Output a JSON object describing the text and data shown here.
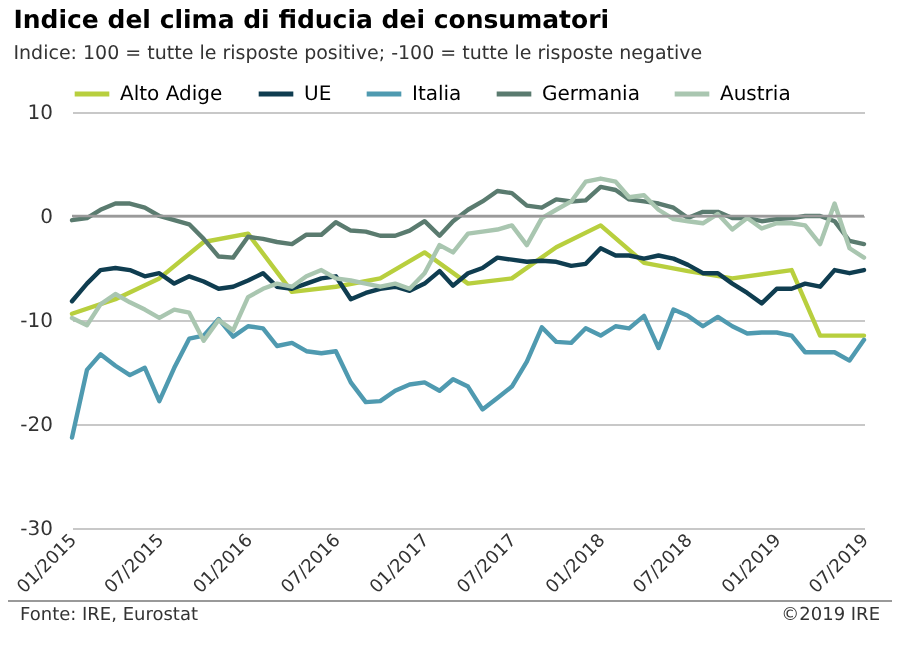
{
  "chart_data": {
    "type": "line",
    "title": "Indice del clima di fiducia dei consumatori",
    "subtitle": "Indice: 100 = tutte le risposte positive; -100 =  tutte le risposte negative",
    "annotations": [
      "Fonte: IRE, Eurostat",
      "©2019 IRE"
    ],
    "x": [
      "2015-01",
      "2015-02",
      "2015-03",
      "2015-04",
      "2015-05",
      "2015-06",
      "2015-07",
      "2015-08",
      "2015-09",
      "2015-10",
      "2015-11",
      "2015-12",
      "2016-01",
      "2016-02",
      "2016-03",
      "2016-04",
      "2016-05",
      "2016-06",
      "2016-07",
      "2016-08",
      "2016-09",
      "2016-10",
      "2016-11",
      "2016-12",
      "2017-01",
      "2017-02",
      "2017-03",
      "2017-04",
      "2017-05",
      "2017-06",
      "2017-07",
      "2017-08",
      "2017-09",
      "2017-10",
      "2017-11",
      "2017-12",
      "2018-01",
      "2018-02",
      "2018-03",
      "2018-04",
      "2018-05",
      "2018-06",
      "2018-07",
      "2018-08",
      "2018-09",
      "2018-10",
      "2018-11",
      "2018-12",
      "2019-01",
      "2019-02",
      "2019-03",
      "2019-04",
      "2019-05",
      "2019-06",
      "2019-07"
    ],
    "series": [
      {
        "name": "Alto Adige",
        "color": "#b8cf3e",
        "x": [
          "2015-01",
          "2015-04",
          "2015-07",
          "2015-10",
          "2016-01",
          "2016-04",
          "2016-07",
          "2016-10",
          "2017-01",
          "2017-04",
          "2017-07",
          "2017-10",
          "2018-01",
          "2018-04",
          "2018-07",
          "2018-10",
          "2019-02",
          "2019-04",
          "2019-07"
        ],
        "values": [
          -9.4,
          -8,
          -6,
          -2.5,
          -1.7,
          -7.3,
          -6.8,
          -6,
          -3.5,
          -6.5,
          -6,
          -3,
          -0.9,
          -4.5,
          -5.3,
          -6,
          -5.2,
          -11.5,
          -11.5
        ]
      },
      {
        "name": "UE",
        "color": "#0f3d50",
        "values": [
          -8.2,
          -6.5,
          -5.2,
          -5,
          -5.2,
          -5.8,
          -5.5,
          -6.5,
          -5.8,
          -6.3,
          -7,
          -6.8,
          -6.2,
          -5.5,
          -6.8,
          -7,
          -6.5,
          -6,
          -5.8,
          -8,
          -7.4,
          -7,
          -6.8,
          -7.2,
          -6.5,
          -5.3,
          -6.7,
          -5.5,
          -5,
          -4,
          -4.2,
          -4.4,
          -4.3,
          -4.4,
          -4.8,
          -4.6,
          -3.1,
          -3.8,
          -3.8,
          -4.1,
          -3.8,
          -4.1,
          -4.7,
          -5.5,
          -5.5,
          -6.5,
          -7.4,
          -8.4,
          -7,
          -7,
          -6.5,
          -6.8,
          -5.2,
          -5.5,
          -5.2
        ]
      },
      {
        "name": "Italia",
        "color": "#4f9ab0",
        "values": [
          -21.3,
          -14.8,
          -13.3,
          -14.4,
          -15.3,
          -14.6,
          -17.8,
          -14.6,
          -11.8,
          -11.5,
          -9.9,
          -11.6,
          -10.6,
          -10.8,
          -12.5,
          -12.2,
          -13,
          -13.2,
          -13,
          -16,
          -17.9,
          -17.8,
          -16.8,
          -16.2,
          -16,
          -16.8,
          -15.7,
          -16.4,
          -18.6,
          -17.5,
          -16.4,
          -14,
          -10.7,
          -12.1,
          -12.2,
          -10.8,
          -11.5,
          -10.6,
          -10.8,
          -9.6,
          -12.7,
          -9,
          -9.6,
          -10.6,
          -9.7,
          -10.6,
          -11.3,
          -11.2,
          -11.2,
          -11.5,
          -13.1,
          -13.1,
          -13.1,
          -13.9,
          -11.9
        ]
      },
      {
        "name": "Germania",
        "color": "#5a7b6f",
        "values": [
          -0.4,
          -0.2,
          0.6,
          1.2,
          1.2,
          0.8,
          0,
          -0.4,
          -0.8,
          -2.2,
          -3.9,
          -4,
          -2,
          -2.2,
          -2.5,
          -2.7,
          -1.8,
          -1.8,
          -0.6,
          -1.4,
          -1.5,
          -1.9,
          -1.9,
          -1.4,
          -0.5,
          -1.9,
          -0.5,
          0.6,
          1.4,
          2.4,
          2.2,
          1,
          0.8,
          1.6,
          1.4,
          1.5,
          2.8,
          2.5,
          1.6,
          1.4,
          1.2,
          0.8,
          -0.2,
          0.4,
          0.4,
          -0.2,
          -0.2,
          -0.5,
          -0.3,
          -0.2,
          0,
          0,
          -0.5,
          -2.4,
          -2.7
        ]
      },
      {
        "name": "Austria",
        "color": "#a9c6b0",
        "values": [
          -9.8,
          -10.5,
          -8.5,
          -7.5,
          -8.3,
          -9,
          -9.8,
          -9,
          -9.3,
          -12,
          -10,
          -11,
          -7.8,
          -7,
          -6.5,
          -6.8,
          -5.8,
          -5.2,
          -6,
          -6.2,
          -6.5,
          -6.8,
          -6.5,
          -7,
          -5.5,
          -2.8,
          -3.5,
          -1.7,
          -1.5,
          -1.3,
          -0.9,
          -2.8,
          -0.2,
          0.6,
          1.4,
          3.3,
          3.6,
          3.3,
          1.8,
          2,
          0.6,
          -0.3,
          -0.5,
          -0.7,
          0.2,
          -1.3,
          -0.2,
          -1.2,
          -0.7,
          -0.7,
          -0.9,
          -2.7,
          1.2,
          -3.1,
          -4
        ]
      }
    ],
    "xlim": [
      "2015-01",
      "2019-07"
    ],
    "xticks": [
      {
        "value": "2015-01",
        "label": "01/2015"
      },
      {
        "value": "2015-07",
        "label": "07/2015"
      },
      {
        "value": "2016-01",
        "label": "01/2016"
      },
      {
        "value": "2016-07",
        "label": "07/2016"
      },
      {
        "value": "2017-01",
        "label": "01/2017"
      },
      {
        "value": "2017-07",
        "label": "07/2017"
      },
      {
        "value": "2018-01",
        "label": "01/2018"
      },
      {
        "value": "2018-07",
        "label": "07/2018"
      },
      {
        "value": "2019-01",
        "label": "01/2019"
      },
      {
        "value": "2019-07",
        "label": "07/2019"
      }
    ],
    "ylim": [
      -30,
      10
    ],
    "yticks": [
      -30,
      -20,
      -10,
      0,
      10
    ],
    "ref_lines": [
      {
        "axis": "y",
        "value": 0,
        "color": "#9a9a9a"
      }
    ],
    "grid": "y",
    "legend": "top",
    "marker": "none",
    "line_style": "solid"
  }
}
